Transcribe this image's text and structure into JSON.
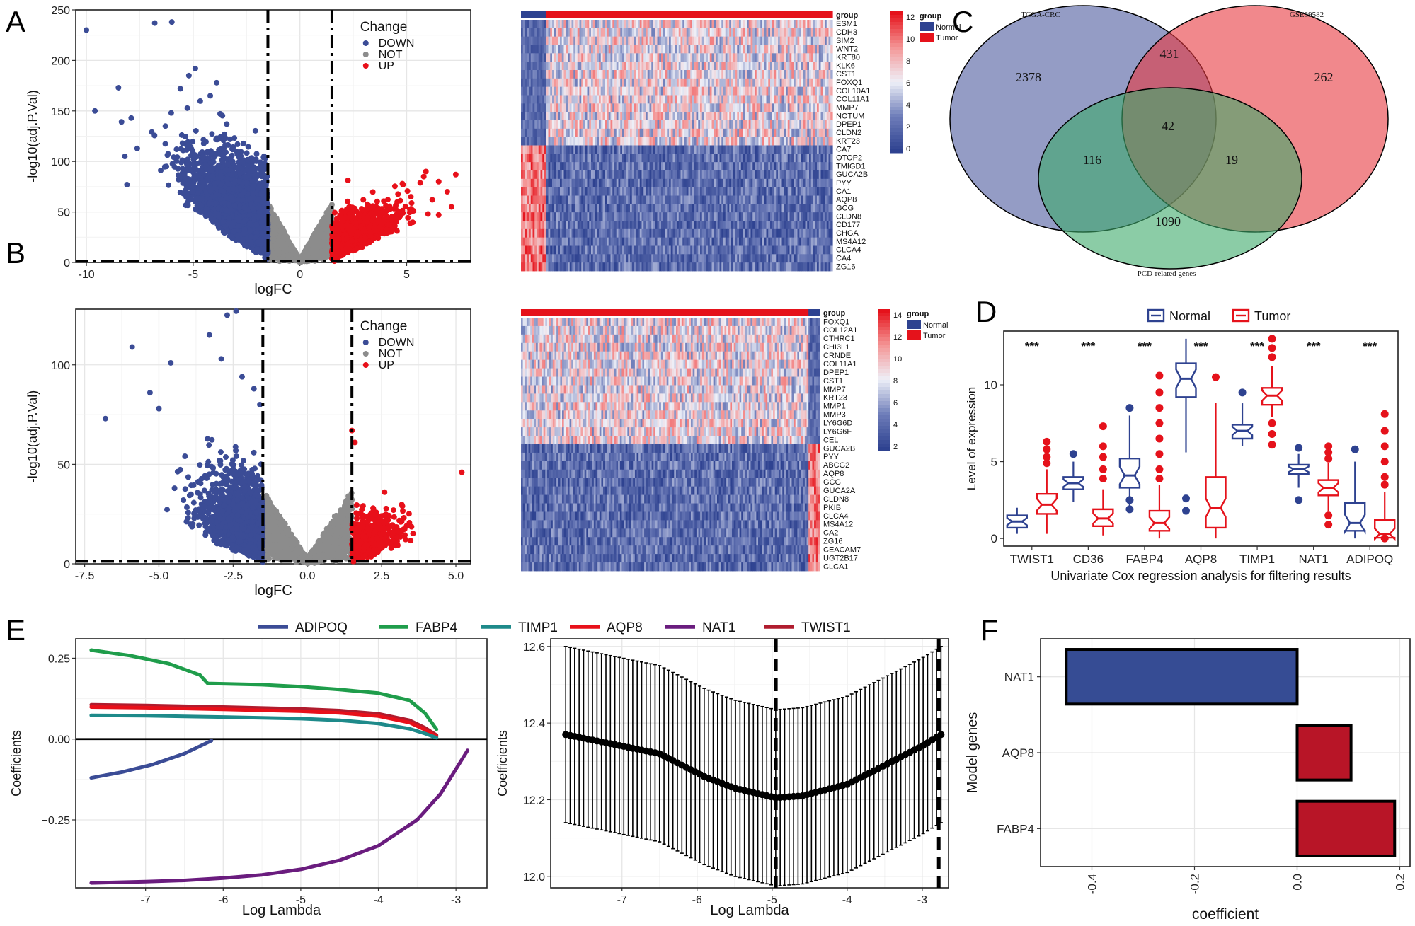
{
  "panel_letters": {
    "A": "A",
    "B": "B",
    "C": "C",
    "D": "D",
    "E": "E",
    "F": "F"
  },
  "colors": {
    "down": "#3B4C96",
    "not": "#8C8C8C",
    "up": "#E8101A",
    "normal": "#2E4290",
    "tumor": "#E5121B",
    "nat1_line": "#6A1C7E",
    "fabp4_line": "#1F9D4B",
    "timp1_line": "#1E8A8A",
    "aqp8_line": "#E8101A",
    "twist1_line": "#B01C2E",
    "adipoq_line": "#3B4C96",
    "bar_neg": "#364C94",
    "bar_pos": "#B81527"
  },
  "chart_data": [
    {
      "id": "A_volcano",
      "type": "scatter",
      "xlabel": "logFC",
      "ylabel": "-log10(adj.P.Val)",
      "xlim": [
        -10.5,
        8
      ],
      "ylim": [
        0,
        250
      ],
      "xticks": [
        -10,
        -5,
        0,
        5
      ],
      "yticks": [
        0,
        50,
        100,
        150,
        200,
        250
      ],
      "thresholds": {
        "logFC": [
          -1.5,
          1.5
        ],
        "p": 1.3
      },
      "legend": {
        "title": "Change",
        "items": [
          "DOWN",
          "NOT",
          "UP"
        ],
        "placement": "top-right"
      },
      "outliers_down": [
        [
          -10,
          230
        ],
        [
          -6.8,
          237
        ],
        [
          -6,
          238
        ],
        [
          -9.6,
          150
        ],
        [
          -8.5,
          173
        ],
        [
          -7.9,
          143
        ],
        [
          -8.2,
          105
        ],
        [
          -8.1,
          77
        ],
        [
          -5.2,
          185
        ],
        [
          -4.9,
          192
        ],
        [
          -5.6,
          172
        ],
        [
          -4.2,
          165
        ],
        [
          -3.9,
          178
        ],
        [
          -6.3,
          135
        ],
        [
          -5.5,
          118
        ]
      ],
      "outliers_up": [
        [
          7.3,
          87
        ],
        [
          6.9,
          70
        ],
        [
          7.1,
          55
        ],
        [
          6.5,
          80
        ],
        [
          6.2,
          62
        ],
        [
          5.8,
          85
        ],
        [
          5.2,
          65
        ],
        [
          6.0,
          48
        ],
        [
          6.5,
          47
        ],
        [
          5.9,
          90
        ],
        [
          4.8,
          78
        ]
      ]
    },
    {
      "id": "A_heatmap",
      "type": "heatmap",
      "genes": [
        "ESM1",
        "CDH3",
        "SIM2",
        "WNT2",
        "KRT80",
        "KLK6",
        "CST1",
        "FOXQ1",
        "COL10A1",
        "COL11A1",
        "MMP7",
        "NOTUM",
        "DPEP1",
        "CLDN2",
        "KRT23",
        "CA7",
        "OTOP2",
        "TMIGD1",
        "GUCA2B",
        "PYY",
        "CA1",
        "AQP8",
        "GCG",
        "CLDN8",
        "CD177",
        "CHGA",
        "MS4A12",
        "CLCA4",
        "CA4",
        "ZG16"
      ],
      "up_gene_count": 15,
      "normal_fraction": 0.08,
      "scale_ticks": [
        0,
        2,
        4,
        6,
        8,
        10,
        12
      ],
      "legend_title": "group",
      "legend_items": [
        "Normal",
        "Tumor"
      ],
      "annotation_label": "group"
    },
    {
      "id": "B_volcano",
      "type": "scatter",
      "xlabel": "logFC",
      "ylabel": "-log10(adj.P.Val)",
      "xlim": [
        -7.8,
        5.5
      ],
      "ylim": [
        0,
        128
      ],
      "xticks": [
        -7.5,
        -5.0,
        -2.5,
        0.0,
        2.5,
        5.0
      ],
      "yticks": [
        0,
        50,
        100
      ],
      "xtick_labels": [
        "-7.5",
        "-5.0",
        "-2.5",
        "0.0",
        "2.5",
        "5.0"
      ],
      "thresholds": {
        "logFC": [
          -1.5,
          1.5
        ],
        "p": 1.3
      },
      "legend": {
        "title": "Change",
        "items": [
          "DOWN",
          "NOT",
          "UP"
        ],
        "placement": "top-right"
      },
      "outliers_down": [
        [
          -2.7,
          125
        ],
        [
          -2.4,
          127
        ],
        [
          -3.3,
          115
        ],
        [
          -5.9,
          109
        ],
        [
          -2.9,
          103
        ],
        [
          -4.6,
          101
        ],
        [
          -2.2,
          94
        ],
        [
          -5.3,
          86
        ],
        [
          -5.0,
          78
        ],
        [
          -6.8,
          73
        ],
        [
          -1.8,
          88
        ],
        [
          -1.6,
          80
        ]
      ],
      "outliers_up": [
        [
          5.2,
          46
        ],
        [
          1.6,
          61
        ],
        [
          1.5,
          67
        ],
        [
          2.6,
          36
        ],
        [
          2.9,
          27
        ],
        [
          3.2,
          29
        ]
      ]
    },
    {
      "id": "B_heatmap",
      "type": "heatmap",
      "genes": [
        "FOXQ1",
        "COL12A1",
        "CTHRC1",
        "CHI3L1",
        "CRNDE",
        "COL11A1",
        "DPEP1",
        "CST1",
        "MMP7",
        "KRT23",
        "MMP1",
        "MMP3",
        "LY6G6D",
        "LY6G6F",
        "CEL",
        "GUCA2B",
        "PYY",
        "ABCG2",
        "AQP8",
        "GCG",
        "GUCA2A",
        "CLDN8",
        "PKIB",
        "CLCA4",
        "MS4A12",
        "CA2",
        "ZG16",
        "CEACAM7",
        "UGT2B17",
        "CLCA1"
      ],
      "up_gene_count": 15,
      "normal_fraction": 0.035,
      "scale_ticks": [
        2,
        4,
        6,
        8,
        10,
        12,
        14
      ],
      "legend_title": "group",
      "legend_items": [
        "Normal",
        "Tumor"
      ],
      "annotation_label": "group"
    },
    {
      "id": "C_venn",
      "type": "venn",
      "sets": [
        "TCGA-CRC",
        "GSE39582",
        "PCD-related genes"
      ],
      "regions": {
        "only_tcga": 2378,
        "only_gse": 262,
        "only_pcd": 1090,
        "tcga_gse": 431,
        "tcga_pcd": 116,
        "gse_pcd": 19,
        "all": 42
      }
    },
    {
      "id": "D_boxplot",
      "type": "box",
      "title": "",
      "xlabel": "Univariate Cox regression analysis for filtering results",
      "ylabel": "Level of expression",
      "ylim": [
        -0.5,
        13.5
      ],
      "yticks": [
        0,
        5,
        10
      ],
      "categories": [
        "TWIST1",
        "CD36",
        "FABP4",
        "AQP8",
        "TIMP1",
        "NAT1",
        "ADIPOQ"
      ],
      "significance": "***",
      "legend_items": [
        "Normal",
        "Tumor"
      ],
      "normal": [
        {
          "q1": 0.7,
          "median": 1.1,
          "q3": 1.5,
          "lo": 0.3,
          "hi": 2.0,
          "out": []
        },
        {
          "q1": 3.2,
          "median": 3.6,
          "q3": 4.0,
          "lo": 2.4,
          "hi": 5.0,
          "out": [
            5.5
          ]
        },
        {
          "q1": 3.3,
          "median": 4.1,
          "q3": 5.2,
          "lo": 1.8,
          "hi": 8.0,
          "out": [
            8.5,
            2.5,
            1.9
          ]
        },
        {
          "q1": 9.2,
          "median": 10.4,
          "q3": 11.4,
          "lo": 5.6,
          "hi": 13.0,
          "out": [
            2.6,
            1.8
          ]
        },
        {
          "q1": 6.5,
          "median": 7.0,
          "q3": 7.4,
          "lo": 6.0,
          "hi": 8.8,
          "out": [
            9.5
          ]
        },
        {
          "q1": 4.2,
          "median": 4.5,
          "q3": 4.8,
          "lo": 3.3,
          "hi": 5.5,
          "out": [
            2.5,
            5.9
          ]
        },
        {
          "q1": 0.5,
          "median": 1.0,
          "q3": 2.3,
          "lo": 0.0,
          "hi": 5.0,
          "out": [
            5.8
          ]
        }
      ],
      "tumor": [
        {
          "q1": 1.6,
          "median": 2.2,
          "q3": 2.9,
          "lo": 0.3,
          "hi": 4.5,
          "out": [
            6.3,
            5.8,
            5.3,
            4.9
          ]
        },
        {
          "q1": 0.8,
          "median": 1.3,
          "q3": 1.9,
          "lo": 0.2,
          "hi": 3.2,
          "out": [
            7.3,
            6.0,
            5.3,
            4.5,
            3.9
          ]
        },
        {
          "q1": 0.5,
          "median": 1.0,
          "q3": 1.8,
          "lo": 0.0,
          "hi": 3.5,
          "out": [
            10.6,
            9.5,
            8.5,
            7.5,
            6.5,
            5.5,
            4.5,
            3.9
          ]
        },
        {
          "q1": 0.7,
          "median": 2.0,
          "q3": 4.0,
          "lo": 0.0,
          "hi": 8.8,
          "out": [
            10.5
          ]
        },
        {
          "q1": 8.7,
          "median": 9.3,
          "q3": 9.8,
          "lo": 7.9,
          "hi": 11.2,
          "out": [
            13.0,
            12.4,
            11.8,
            7.5,
            6.8,
            6.1
          ]
        },
        {
          "q1": 2.8,
          "median": 3.3,
          "q3": 3.8,
          "lo": 1.8,
          "hi": 4.9,
          "out": [
            6.0,
            5.6,
            5.2,
            1.5,
            0.9
          ]
        },
        {
          "q1": 0.05,
          "median": 0.3,
          "q3": 1.2,
          "lo": 0.0,
          "hi": 3.0,
          "out": [
            8.1,
            7.0,
            6.0,
            5.0,
            4.0,
            3.5,
            0.0
          ]
        }
      ]
    },
    {
      "id": "E_paths",
      "type": "line",
      "xlabel": "Log Lambda",
      "ylabel": "Coefficients",
      "xlim": [
        -7.9,
        -2.6
      ],
      "ylim": [
        -0.46,
        0.31
      ],
      "xticks": [
        -7,
        -6,
        -5,
        -4,
        -3
      ],
      "yticks": [
        -0.25,
        0.0,
        0.25
      ],
      "ytick_labels": [
        "−0.25",
        "0.00",
        "0.25"
      ],
      "legend": [
        "ADIPOQ",
        "FABP4",
        "TIMP1",
        "AQP8",
        "NAT1",
        "TWIST1"
      ],
      "series": [
        {
          "name": "FABP4",
          "x": [
            -7.7,
            -7.2,
            -6.7,
            -6.3,
            -6.2,
            -5.5,
            -5.0,
            -4.5,
            -4.0,
            -3.6,
            -3.4,
            -3.25
          ],
          "y": [
            0.275,
            0.258,
            0.233,
            0.198,
            0.172,
            0.168,
            0.162,
            0.153,
            0.142,
            0.12,
            0.08,
            0.03
          ]
        },
        {
          "name": "TWIST1",
          "x": [
            -7.7,
            -7.0,
            -6.0,
            -5.0,
            -4.5,
            -4.0,
            -3.6,
            -3.4,
            -3.25
          ],
          "y": [
            0.106,
            0.104,
            0.099,
            0.093,
            0.088,
            0.078,
            0.058,
            0.035,
            0.012
          ]
        },
        {
          "name": "AQP8",
          "x": [
            -7.7,
            -7.0,
            -6.0,
            -5.0,
            -4.5,
            -4.0,
            -3.6,
            -3.4,
            -3.25
          ],
          "y": [
            0.099,
            0.097,
            0.092,
            0.086,
            0.081,
            0.071,
            0.051,
            0.029,
            0.008
          ]
        },
        {
          "name": "TIMP1",
          "x": [
            -7.7,
            -7.0,
            -6.0,
            -5.0,
            -4.5,
            -4.0,
            -3.6,
            -3.4,
            -3.25
          ],
          "y": [
            0.073,
            0.072,
            0.068,
            0.063,
            0.058,
            0.048,
            0.032,
            0.017,
            0.004
          ]
        },
        {
          "name": "ADIPOQ",
          "x": [
            -7.7,
            -7.3,
            -6.9,
            -6.5,
            -6.15
          ],
          "y": [
            -0.12,
            -0.102,
            -0.078,
            -0.045,
            -0.005
          ]
        },
        {
          "name": "NAT1",
          "x": [
            -7.7,
            -7.0,
            -6.5,
            -6.0,
            -5.5,
            -5.0,
            -4.5,
            -4.0,
            -3.5,
            -3.2,
            -2.85
          ],
          "y": [
            -0.445,
            -0.441,
            -0.437,
            -0.43,
            -0.42,
            -0.403,
            -0.375,
            -0.33,
            -0.25,
            -0.17,
            -0.035
          ]
        }
      ]
    },
    {
      "id": "E_cv",
      "type": "errorbar",
      "xlabel": "Log Lambda",
      "ylabel": "Coefficients",
      "xlim": [
        -7.95,
        -2.65
      ],
      "ylim": [
        11.97,
        12.62
      ],
      "xticks": [
        -7,
        -6,
        -5,
        -4,
        -3
      ],
      "yticks": [
        12.0,
        12.2,
        12.4,
        12.6
      ],
      "ytick_labels": [
        "12.0",
        "12.2",
        "12.4",
        "12.6"
      ],
      "lambda_min": -4.95,
      "lambda_1se": -2.78,
      "x_start": -7.75,
      "x_end": -2.75,
      "center_points": [
        [
          -7.75,
          12.37
        ],
        [
          -6.5,
          12.32
        ],
        [
          -5.9,
          12.26
        ],
        [
          -5.5,
          12.23
        ],
        [
          -4.95,
          12.205
        ],
        [
          -4.6,
          12.21
        ],
        [
          -4.0,
          12.24
        ],
        [
          -3.5,
          12.29
        ],
        [
          -3.0,
          12.34
        ],
        [
          -2.75,
          12.37
        ]
      ],
      "half_width": 0.23
    },
    {
      "id": "F_bar",
      "type": "bar",
      "orientation": "horizontal",
      "xlabel": "coefficient",
      "ylabel": "Model genes",
      "xlim": [
        -0.5,
        0.22
      ],
      "xticks": [
        -0.4,
        -0.2,
        0.0,
        0.2
      ],
      "xtick_labels": [
        "-0.4",
        "-0.2",
        "0.0",
        "0.2"
      ],
      "categories": [
        "NAT1",
        "AQP8",
        "FABP4"
      ],
      "values": [
        -0.45,
        0.105,
        0.19
      ]
    }
  ]
}
